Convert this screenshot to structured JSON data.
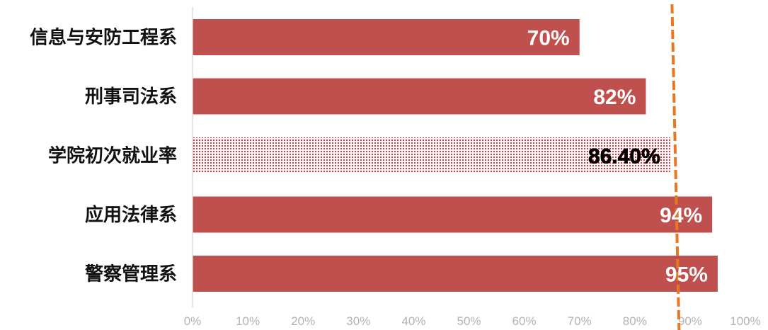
{
  "chart_data": {
    "type": "bar",
    "orientation": "horizontal",
    "categories": [
      "信息与安防工程系",
      "刑事司法系",
      "学院初次就业率",
      "应用法律系",
      "警察管理系"
    ],
    "values": [
      70,
      82,
      86.4,
      94,
      95
    ],
    "data_labels": [
      "70%",
      "82%",
      "86.40%",
      "94%",
      "95%"
    ],
    "highlighted_category": "学院初次就业率",
    "xlim": [
      0,
      100
    ],
    "x_ticks": [
      0,
      10,
      20,
      30,
      40,
      50,
      60,
      70,
      80,
      90,
      100
    ],
    "x_tick_labels": [
      "0%",
      "10%",
      "20%",
      "30%",
      "40%",
      "50%",
      "60%",
      "70%",
      "80%",
      "90%",
      "100%"
    ],
    "reference_line_value": 87.5,
    "grid": false,
    "legend": "none",
    "colors": {
      "bar": "#c0504d",
      "highlight_dots": "#e2232b",
      "highlight_label": "#000000",
      "bar_label": "#ffffff",
      "reference_line": "#e87722",
      "axis": "#d9d9d9",
      "tick_label": "#b3b3b3"
    }
  }
}
